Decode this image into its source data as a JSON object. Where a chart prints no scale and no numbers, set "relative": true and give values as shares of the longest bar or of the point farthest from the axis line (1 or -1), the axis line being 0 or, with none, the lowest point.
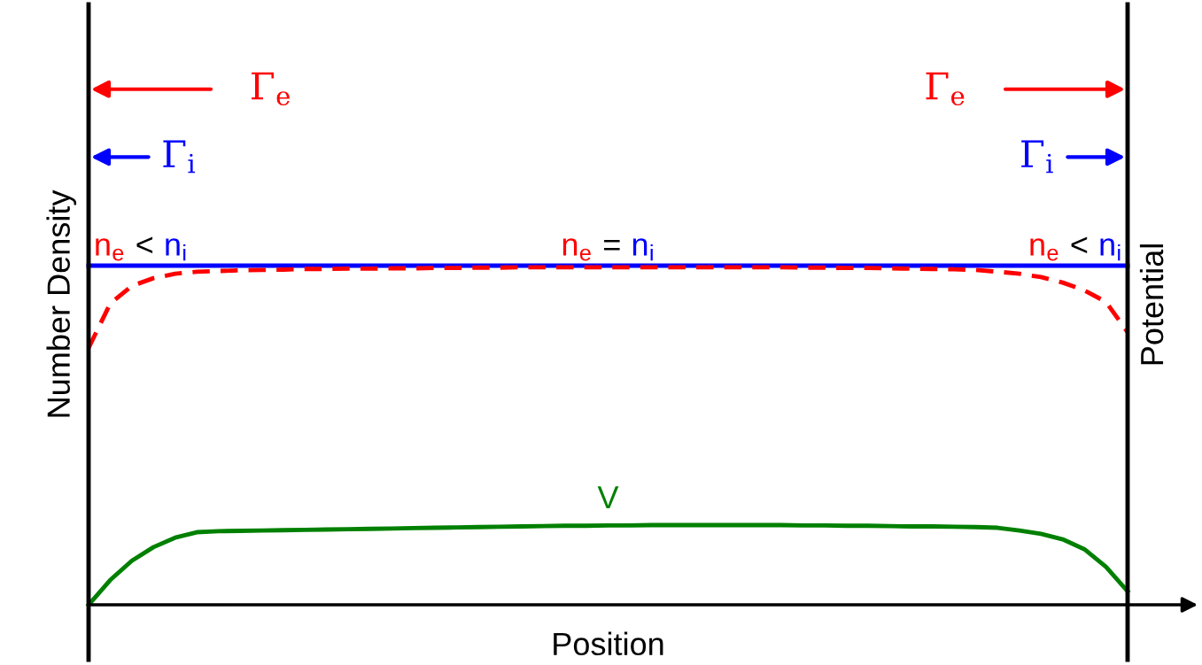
{
  "chart_data": {
    "type": "line",
    "relative": true,
    "xlabel": "Position",
    "ylabel": "Number Density",
    "y2label": "Potential",
    "legend": false,
    "grid": false,
    "marker": "none",
    "categories": [
      null,
      null,
      null,
      null,
      null,
      null,
      null,
      null,
      null,
      null,
      null,
      null,
      null,
      null,
      null,
      null,
      null,
      null,
      null,
      null,
      null,
      null,
      null,
      null,
      null,
      null,
      null,
      null,
      null,
      null,
      null,
      null,
      null,
      null,
      null,
      null,
      null,
      null,
      null,
      null,
      null,
      null,
      null,
      null,
      null,
      null,
      null,
      null,
      null
    ],
    "series": [
      {
        "color": "#0000ff",
        "line_style": "solid",
        "values": [
          1,
          1,
          1,
          1,
          1,
          1,
          1,
          1,
          1,
          1,
          1,
          1,
          1,
          1,
          1,
          1,
          1,
          1,
          1,
          1,
          1,
          1,
          1,
          1,
          1,
          1,
          1,
          1,
          1,
          1,
          1,
          1,
          1,
          1,
          1,
          1,
          1,
          1,
          1,
          1,
          1,
          1,
          1,
          1,
          1,
          1,
          1,
          1,
          1
        ]
      },
      {
        "color": "#ff0000",
        "line_style": "dashed",
        "values": [
          0.757,
          0.888,
          0.94,
          0.963,
          0.976,
          0.982,
          0.984,
          0.986,
          0.987,
          0.988,
          0.99,
          0.99,
          0.991,
          0.991,
          0.992,
          0.992,
          0.993,
          0.993,
          0.994,
          0.994,
          0.995,
          0.995,
          0.995,
          0.995,
          0.995,
          0.995,
          0.995,
          0.995,
          0.995,
          0.995,
          0.995,
          0.995,
          0.995,
          0.994,
          0.994,
          0.993,
          0.993,
          0.992,
          0.991,
          0.99,
          0.989,
          0.987,
          0.982,
          0.976,
          0.966,
          0.95,
          0.927,
          0.893,
          0.804
        ]
      },
      {
        "name": "V",
        "color": "#008000",
        "line_style": "solid",
        "values": [
          0,
          0.073,
          0.13,
          0.17,
          0.198,
          0.214,
          0.217,
          0.218,
          0.219,
          0.22,
          0.221,
          0.222,
          0.223,
          0.224,
          0.225,
          0.226,
          0.227,
          0.228,
          0.229,
          0.23,
          0.231,
          0.232,
          0.233,
          0.233,
          0.234,
          0.234,
          0.235,
          0.235,
          0.235,
          0.235,
          0.235,
          0.235,
          0.235,
          0.234,
          0.234,
          0.233,
          0.233,
          0.232,
          0.231,
          0.231,
          0.23,
          0.229,
          0.227,
          0.219,
          0.209,
          0.193,
          0.164,
          0.112,
          0.04
        ]
      }
    ],
    "annotations": [
      "Γ$_{e}$",
      "Γ$_{e}$",
      "Γ$_{i}$",
      "Γ$_{i}$",
      "n$_{e}$ < n$_{i}$",
      "n$_{e}$ = n$_{i}$",
      "n$_{e}$ < n$_{i}$"
    ]
  }
}
